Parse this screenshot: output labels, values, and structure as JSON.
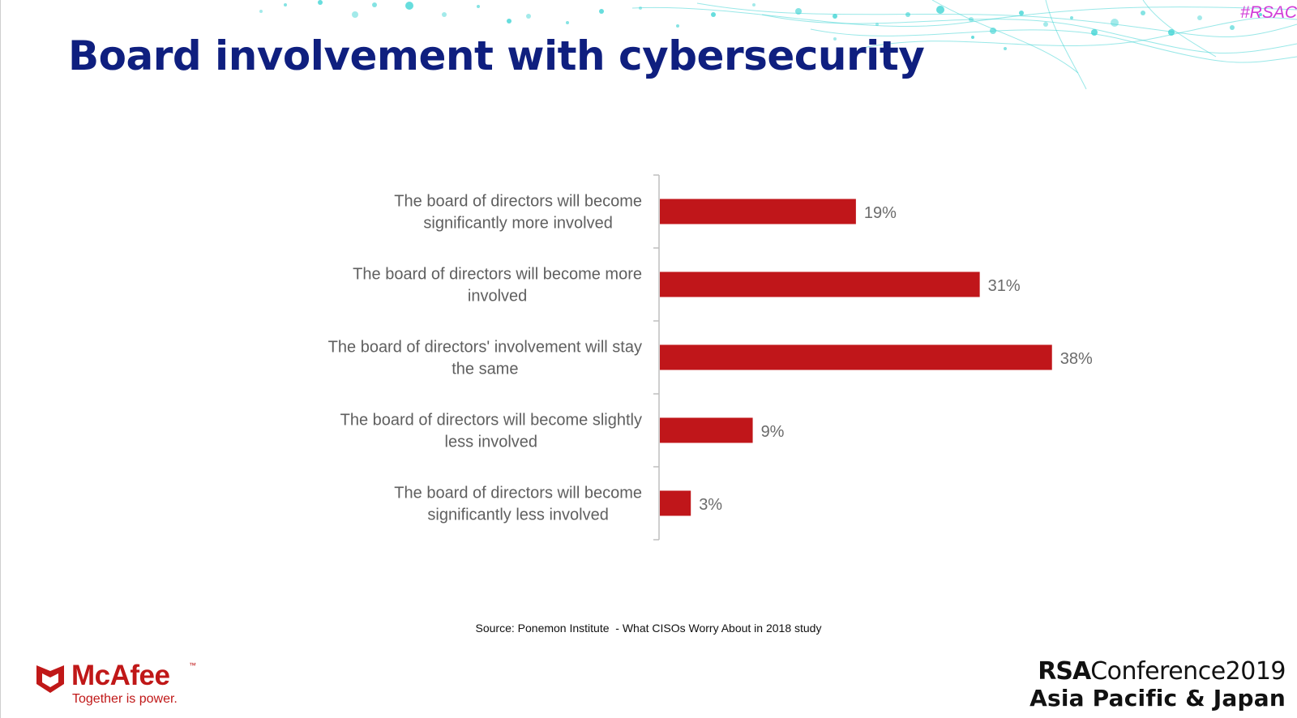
{
  "header": {
    "title": "Board involvement with cybersecurity",
    "hashtag": "#RSAC"
  },
  "chart_data": {
    "type": "bar",
    "orientation": "horizontal",
    "categories": [
      "The board of directors will become significantly more involved",
      "The board of directors will become more involved",
      "The board of directors' involvement will stay the same",
      "The board of directors will become slightly less involved",
      "The board of directors will become significantly less involved"
    ],
    "values": [
      19,
      31,
      38,
      9,
      3
    ],
    "data_labels": [
      "19%",
      "31%",
      "38%",
      "9%",
      "3%"
    ],
    "value_unit": "%",
    "xlim": [
      0,
      40
    ],
    "bar_color": "#c0161a",
    "grid": false,
    "legend": "none"
  },
  "footer": {
    "source": "Source: Ponemon Institute  - What CISOs Worry About in 2018 study",
    "brand_left": {
      "name": "McAfee",
      "trademark": "™",
      "tagline": "Together is power."
    },
    "brand_right": {
      "rsa": "RSA",
      "conference": "Conference2019",
      "region": "Asia Pacific & Japan"
    }
  },
  "colors": {
    "title": "#0f1f7f",
    "accent_teal": "#34d1d1",
    "hashtag": "#d23cd8",
    "mcafee_red": "#c01818"
  }
}
